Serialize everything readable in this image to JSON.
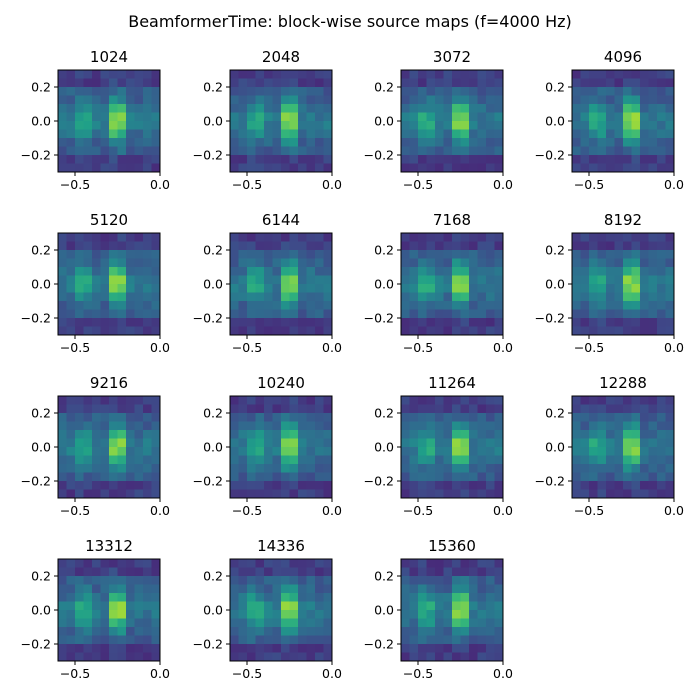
{
  "figure": {
    "suptitle": "BeamformerTime: block-wise source maps (f=4000 Hz)"
  },
  "chart_data": {
    "type": "heatmap",
    "colormap": "viridis",
    "shared_axes": {
      "xlim": [
        -0.6,
        0.0
      ],
      "ylim": [
        -0.3,
        0.3
      ],
      "xticks": [
        -0.5,
        0.0
      ],
      "xtick_labels": [
        "−0.5",
        "0.0"
      ],
      "yticks": [
        0.2,
        0.0,
        -0.2
      ],
      "ytick_labels": [
        "0.2",
        "0.0",
        "−0.2"
      ],
      "grid_cols": 12,
      "grid_rows": 12
    },
    "panels": [
      {
        "title": "1024",
        "seed": 1
      },
      {
        "title": "2048",
        "seed": 2
      },
      {
        "title": "3072",
        "seed": 3
      },
      {
        "title": "4096",
        "seed": 4
      },
      {
        "title": "5120",
        "seed": 5
      },
      {
        "title": "6144",
        "seed": 6
      },
      {
        "title": "7168",
        "seed": 7
      },
      {
        "title": "8192",
        "seed": 8
      },
      {
        "title": "9216",
        "seed": 9
      },
      {
        "title": "10240",
        "seed": 10
      },
      {
        "title": "11264",
        "seed": 11
      },
      {
        "title": "12288",
        "seed": 12
      },
      {
        "title": "13312",
        "seed": 13
      },
      {
        "title": "14336",
        "seed": 14
      },
      {
        "title": "15360",
        "seed": 15
      }
    ],
    "source": {
      "x": -0.25,
      "y": 0.0,
      "note_pattern": "bright vertical band near x=-0.25, fainter column near x=-0.45"
    }
  }
}
